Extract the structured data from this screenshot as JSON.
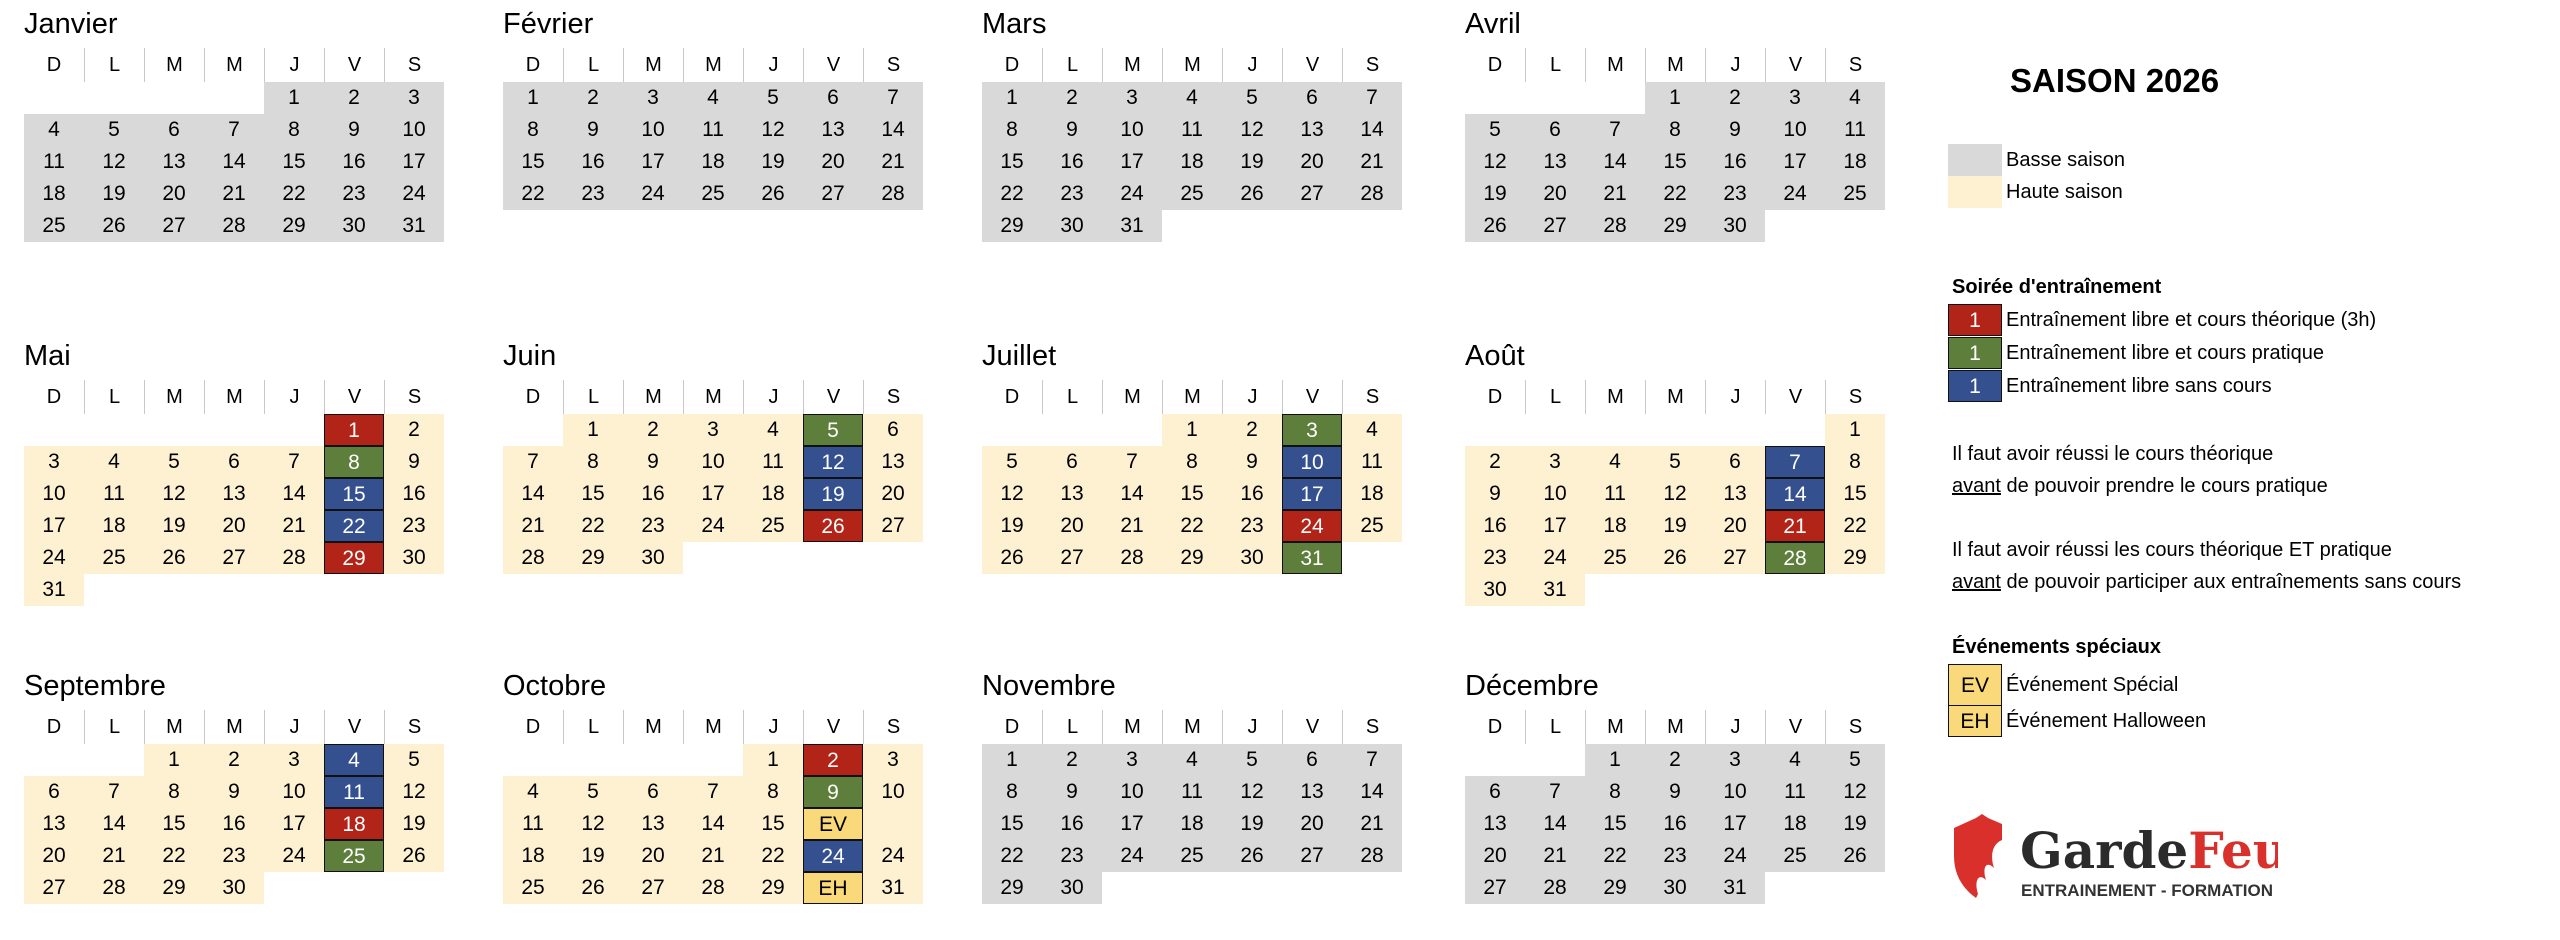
{
  "year": 2026,
  "weekday_headers": [
    "D",
    "L",
    "M",
    "M",
    "J",
    "V",
    "S"
  ],
  "colors": {
    "basse": "#d9d9d9",
    "haute": "#fdf1d2",
    "red": "#b22418",
    "green": "#5e7e3c",
    "blue": "#34508f",
    "event": "#f9d97a",
    "logo_red": "#d9302c"
  },
  "months": [
    {
      "name": "Janvier",
      "season": "low",
      "specials": {}
    },
    {
      "name": "Février",
      "season": "low",
      "specials": {}
    },
    {
      "name": "Mars",
      "season": "low",
      "specials": {}
    },
    {
      "name": "Avril",
      "season": "low",
      "specials": {}
    },
    {
      "name": "Mai",
      "season": "high",
      "specials": {
        "1": "red",
        "8": "green",
        "15": "blue",
        "22": "blue",
        "29": "red"
      }
    },
    {
      "name": "Juin",
      "season": "high",
      "specials": {
        "5": "green",
        "12": "blue",
        "19": "blue",
        "26": "red"
      }
    },
    {
      "name": "Juillet",
      "season": "high",
      "specials": {
        "3": "green",
        "10": "blue",
        "17": "blue",
        "24": "red",
        "31": "green"
      }
    },
    {
      "name": "Août",
      "season": "high",
      "specials": {
        "7": "blue",
        "14": "blue",
        "21": "red",
        "28": "green"
      }
    },
    {
      "name": "Septembre",
      "season": "high",
      "specials": {
        "4": "blue",
        "11": "blue",
        "18": "red",
        "25": "green"
      }
    },
    {
      "name": "Octobre",
      "season": "high",
      "specials": {
        "2": "red",
        "9": "green",
        "16": "event:EV",
        "23": "blue:24",
        "30": "event:EH"
      },
      "hidden_days": [
        16,
        17
      ]
    },
    {
      "name": "Novembre",
      "season": "low",
      "specials": {}
    },
    {
      "name": "Décembre",
      "season": "low",
      "specials": {}
    }
  ],
  "legend": {
    "title": "SAISON 2026",
    "basse": "Basse saison",
    "haute": "Haute saison",
    "soiree_title": "Soirée d'entraînement",
    "swatch_number": "1",
    "red_label": "Entraînement libre et cours théorique (3h)",
    "green_label": "Entraînement libre et cours pratique",
    "blue_label": "Entraînement libre sans cours",
    "note1_line1": "Il faut avoir réussi le cours théorique",
    "note1_emph": "avant",
    "note1_line2": " de pouvoir prendre le cours pratique",
    "note2_line1": "Il faut avoir réussi les cours théorique ET pratique",
    "note2_emph": "avant",
    "note2_line2": " de pouvoir participer aux entraînements sans cours",
    "events_title": "Événements spéciaux",
    "ev_code": "EV",
    "ev_label": "Événement Spécial",
    "eh_code": "EH",
    "eh_label": "Événement Halloween"
  },
  "logo": {
    "name_part1": "Garde",
    "name_part2": "Feu",
    "tagline": "ENTRAINEMENT - FORMATION"
  }
}
